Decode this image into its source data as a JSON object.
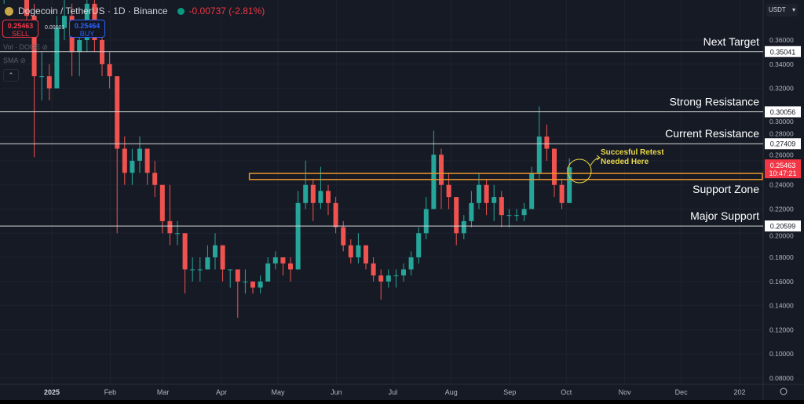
{
  "header": {
    "symbol": "Dogecoin / TetherUS · 1D · Binance",
    "change": "-0.00737 (-2.81%)",
    "sell_price": "0.25463",
    "sell_label": "SELL",
    "buy_price": "0.25464",
    "buy_label": "BUY",
    "spread": "0.00001",
    "indicator_vol": "Vol · DOGE",
    "indicator_sma": "SMA",
    "currency": "USDT"
  },
  "colors": {
    "background": "#161a25",
    "up": "#26a69a",
    "down": "#ef5350",
    "zone": "#e8962e",
    "annotation": "#e8d84a",
    "level_line": "#d8d8d8",
    "price_tag": "#f23645"
  },
  "chart_data": {
    "type": "candlestick",
    "title": "",
    "ylim": [
      0.08,
      0.37
    ],
    "xlim": [
      "2024-12-05",
      "2026-01-03"
    ],
    "grid": true,
    "y_ticks": [
      "0.36000",
      "0.34000",
      "0.32000",
      "0.30000",
      "0.28000",
      "0.26000",
      "0.24000",
      "0.22000",
      "0.20000",
      "0.18000",
      "0.16000",
      "0.14000",
      "0.12000",
      "0.10000",
      "0.08000"
    ],
    "x_ticks": [
      {
        "label": "2025",
        "date": "2025-01-01"
      },
      {
        "label": "Feb",
        "date": "2025-02-01"
      },
      {
        "label": "Mar",
        "date": "2025-03-01"
      },
      {
        "label": "Apr",
        "date": "2025-04-01"
      },
      {
        "label": "May",
        "date": "2025-05-01"
      },
      {
        "label": "Jun",
        "date": "2025-06-01"
      },
      {
        "label": "Jul",
        "date": "2025-07-01"
      },
      {
        "label": "Aug",
        "date": "2025-08-01"
      },
      {
        "label": "Sep",
        "date": "2025-09-01"
      },
      {
        "label": "Oct",
        "date": "2025-10-01"
      },
      {
        "label": "Nov",
        "date": "2025-11-01"
      },
      {
        "label": "Dec",
        "date": "2025-12-01"
      },
      {
        "label": "202",
        "date": "2026-01-01"
      }
    ],
    "candles_ohlc": [
      [
        "2024-12-05",
        0.4,
        0.45,
        0.39,
        0.42
      ],
      [
        "2024-12-09",
        0.42,
        0.46,
        0.4,
        0.44
      ],
      [
        "2024-12-13",
        0.44,
        0.45,
        0.4,
        0.41
      ],
      [
        "2024-12-17",
        0.41,
        0.42,
        0.37,
        0.38
      ],
      [
        "2024-12-21",
        0.38,
        0.39,
        0.263,
        0.33
      ],
      [
        "2024-12-25",
        0.33,
        0.35,
        0.31,
        0.33
      ],
      [
        "2024-12-29",
        0.33,
        0.34,
        0.31,
        0.32
      ],
      [
        "2025-01-02",
        0.32,
        0.38,
        0.32,
        0.37
      ],
      [
        "2025-01-06",
        0.37,
        0.4,
        0.36,
        0.38
      ],
      [
        "2025-01-10",
        0.38,
        0.39,
        0.33,
        0.35
      ],
      [
        "2025-01-14",
        0.35,
        0.37,
        0.33,
        0.36
      ],
      [
        "2025-01-18",
        0.36,
        0.43,
        0.35,
        0.39
      ],
      [
        "2025-01-22",
        0.39,
        0.4,
        0.35,
        0.36
      ],
      [
        "2025-01-26",
        0.36,
        0.37,
        0.33,
        0.34
      ],
      [
        "2025-01-30",
        0.34,
        0.35,
        0.32,
        0.33
      ],
      [
        "2025-02-03",
        0.33,
        0.33,
        0.2,
        0.27
      ],
      [
        "2025-02-07",
        0.27,
        0.28,
        0.24,
        0.25
      ],
      [
        "2025-02-11",
        0.25,
        0.27,
        0.24,
        0.26
      ],
      [
        "2025-02-15",
        0.26,
        0.28,
        0.25,
        0.27
      ],
      [
        "2025-02-19",
        0.27,
        0.27,
        0.24,
        0.25
      ],
      [
        "2025-02-23",
        0.25,
        0.26,
        0.23,
        0.24
      ],
      [
        "2025-02-27",
        0.24,
        0.24,
        0.2,
        0.21
      ],
      [
        "2025-03-03",
        0.21,
        0.24,
        0.19,
        0.2
      ],
      [
        "2025-03-07",
        0.2,
        0.21,
        0.19,
        0.2
      ],
      [
        "2025-03-11",
        0.2,
        0.2,
        0.15,
        0.17
      ],
      [
        "2025-03-15",
        0.17,
        0.18,
        0.16,
        0.17
      ],
      [
        "2025-03-19",
        0.17,
        0.18,
        0.16,
        0.17
      ],
      [
        "2025-03-23",
        0.17,
        0.19,
        0.17,
        0.18
      ],
      [
        "2025-03-27",
        0.18,
        0.2,
        0.17,
        0.19
      ],
      [
        "2025-03-31",
        0.19,
        0.19,
        0.16,
        0.17
      ],
      [
        "2025-04-04",
        0.17,
        0.17,
        0.155,
        0.17
      ],
      [
        "2025-04-08",
        0.17,
        0.17,
        0.13,
        0.16
      ],
      [
        "2025-04-12",
        0.16,
        0.17,
        0.15,
        0.16
      ],
      [
        "2025-04-16",
        0.16,
        0.16,
        0.15,
        0.155
      ],
      [
        "2025-04-20",
        0.155,
        0.165,
        0.15,
        0.16
      ],
      [
        "2025-04-24",
        0.16,
        0.18,
        0.16,
        0.175
      ],
      [
        "2025-04-28",
        0.175,
        0.185,
        0.17,
        0.18
      ],
      [
        "2025-05-02",
        0.18,
        0.18,
        0.165,
        0.175
      ],
      [
        "2025-05-06",
        0.175,
        0.18,
        0.16,
        0.17
      ],
      [
        "2025-05-10",
        0.17,
        0.235,
        0.17,
        0.225
      ],
      [
        "2025-05-14",
        0.225,
        0.26,
        0.22,
        0.24
      ],
      [
        "2025-05-18",
        0.24,
        0.245,
        0.21,
        0.225
      ],
      [
        "2025-05-22",
        0.225,
        0.255,
        0.22,
        0.235
      ],
      [
        "2025-05-26",
        0.235,
        0.24,
        0.215,
        0.225
      ],
      [
        "2025-05-30",
        0.225,
        0.23,
        0.2,
        0.205
      ],
      [
        "2025-06-03",
        0.205,
        0.21,
        0.185,
        0.19
      ],
      [
        "2025-06-07",
        0.19,
        0.195,
        0.175,
        0.18
      ],
      [
        "2025-06-11",
        0.18,
        0.2,
        0.175,
        0.19
      ],
      [
        "2025-06-15",
        0.19,
        0.19,
        0.17,
        0.175
      ],
      [
        "2025-06-19",
        0.175,
        0.18,
        0.16,
        0.165
      ],
      [
        "2025-06-23",
        0.165,
        0.17,
        0.145,
        0.16
      ],
      [
        "2025-06-27",
        0.16,
        0.17,
        0.155,
        0.165
      ],
      [
        "2025-07-01",
        0.165,
        0.17,
        0.155,
        0.165
      ],
      [
        "2025-07-05",
        0.165,
        0.175,
        0.16,
        0.17
      ],
      [
        "2025-07-09",
        0.17,
        0.185,
        0.165,
        0.18
      ],
      [
        "2025-07-13",
        0.18,
        0.205,
        0.175,
        0.2
      ],
      [
        "2025-07-17",
        0.2,
        0.23,
        0.195,
        0.22
      ],
      [
        "2025-07-21",
        0.22,
        0.285,
        0.22,
        0.265
      ],
      [
        "2025-07-25",
        0.265,
        0.27,
        0.22,
        0.24
      ],
      [
        "2025-07-29",
        0.24,
        0.25,
        0.22,
        0.23
      ],
      [
        "2025-08-02",
        0.23,
        0.23,
        0.19,
        0.2
      ],
      [
        "2025-08-06",
        0.2,
        0.215,
        0.195,
        0.21
      ],
      [
        "2025-08-10",
        0.21,
        0.235,
        0.205,
        0.225
      ],
      [
        "2025-08-14",
        0.225,
        0.25,
        0.22,
        0.24
      ],
      [
        "2025-08-18",
        0.24,
        0.245,
        0.215,
        0.225
      ],
      [
        "2025-08-22",
        0.225,
        0.24,
        0.21,
        0.23
      ],
      [
        "2025-08-26",
        0.23,
        0.235,
        0.205,
        0.215
      ],
      [
        "2025-08-30",
        0.215,
        0.22,
        0.205,
        0.215
      ],
      [
        "2025-09-03",
        0.215,
        0.22,
        0.21,
        0.215
      ],
      [
        "2025-09-07",
        0.215,
        0.225,
        0.21,
        0.22
      ],
      [
        "2025-09-11",
        0.22,
        0.255,
        0.22,
        0.25
      ],
      [
        "2025-09-15",
        0.25,
        0.305,
        0.245,
        0.28
      ],
      [
        "2025-09-19",
        0.28,
        0.29,
        0.26,
        0.27
      ],
      [
        "2025-09-23",
        0.27,
        0.27,
        0.23,
        0.24
      ],
      [
        "2025-09-27",
        0.24,
        0.245,
        0.22,
        0.225
      ],
      [
        "2025-10-01",
        0.225,
        0.262,
        0.225,
        0.2546
      ]
    ],
    "levels": [
      {
        "label": "Next Target",
        "value": 0.35041,
        "tag": "0.35041"
      },
      {
        "label": "Strong Resistance",
        "value": 0.30056,
        "tag": "0.30056"
      },
      {
        "label": "Current Resistance",
        "value": 0.27409,
        "tag": "0.27409"
      },
      {
        "label": "Major Support",
        "value": 0.20599,
        "tag": "0.20599"
      }
    ],
    "support_zone": {
      "label": "Support Zone",
      "from": 0.2445,
      "to": 0.2495,
      "start": "2025-04-15"
    },
    "annotation": {
      "text_line1": "Succesful Retest",
      "text_line2": "Needed Here",
      "date": "2025-10-08",
      "value": 0.2515
    },
    "current_price": {
      "value": 0.25463,
      "label": "0.25463",
      "countdown": "10:47:21"
    }
  }
}
